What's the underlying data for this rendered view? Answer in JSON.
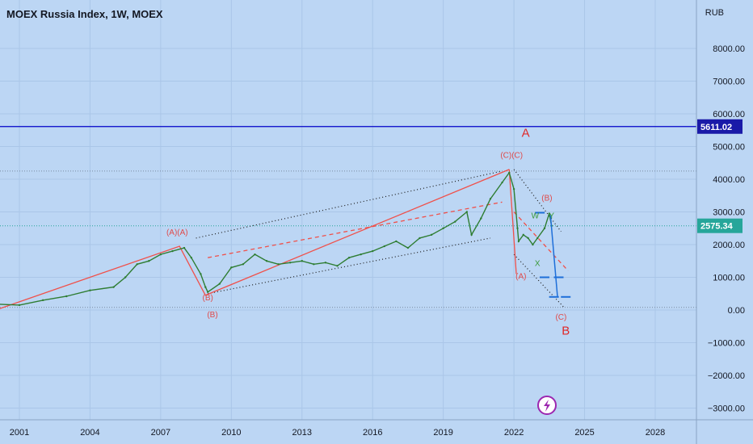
{
  "header": {
    "title": "MOEX Russia Index, 1W, MOEX",
    "currency": "RUB"
  },
  "colors": {
    "background": "#bcd6f4",
    "price": "#2e7d32",
    "red_line": "#f0504a",
    "blue_line": "#0000c8",
    "badge_blue": "#1a1aa8",
    "badge_green": "#26a69a",
    "projection_blue": "#1e6fd9"
  },
  "chart_data": {
    "type": "line",
    "x_axis": {
      "ticks": [
        2001,
        2004,
        2007,
        2010,
        2013,
        2016,
        2019,
        2022,
        2025,
        2028
      ],
      "tick_labels": [
        "2001",
        "2004",
        "2007",
        "2010",
        "2013",
        "2016",
        "2019",
        "2022",
        "2025",
        "2028"
      ],
      "range": [
        2000.0,
        2030.5
      ]
    },
    "y_axis": {
      "ticks": [
        8000,
        7000,
        6000,
        5000,
        4000,
        3000,
        2000,
        1000,
        0,
        -1000,
        -2000,
        -3000
      ],
      "tick_labels": [
        "8000.00",
        "7000.00",
        "6000.00",
        "5000.00",
        "4000.00",
        "3000.00",
        "2000.00",
        "1000.00",
        "0.00",
        "−1000.00",
        "−2000.00",
        "−3000.00"
      ],
      "range": [
        -3300,
        9200
      ]
    },
    "series": [
      {
        "values": [
          [
            2000.0,
            180
          ],
          [
            2001.0,
            150
          ],
          [
            2002.0,
            300
          ],
          [
            2003.0,
            420
          ],
          [
            2004.0,
            600
          ],
          [
            2005.0,
            700
          ],
          [
            2005.5,
            1000
          ],
          [
            2006.0,
            1400
          ],
          [
            2006.5,
            1500
          ],
          [
            2007.0,
            1700
          ],
          [
            2007.5,
            1800
          ],
          [
            2008.0,
            1900
          ],
          [
            2008.3,
            1600
          ],
          [
            2008.7,
            1100
          ],
          [
            2008.9,
            700
          ],
          [
            2009.0,
            550
          ],
          [
            2009.5,
            800
          ],
          [
            2010.0,
            1300
          ],
          [
            2010.5,
            1400
          ],
          [
            2011.0,
            1700
          ],
          [
            2011.5,
            1500
          ],
          [
            2012.0,
            1400
          ],
          [
            2012.5,
            1450
          ],
          [
            2013.0,
            1500
          ],
          [
            2013.5,
            1400
          ],
          [
            2014.0,
            1450
          ],
          [
            2014.5,
            1350
          ],
          [
            2015.0,
            1600
          ],
          [
            2015.5,
            1700
          ],
          [
            2016.0,
            1800
          ],
          [
            2016.5,
            1950
          ],
          [
            2017.0,
            2100
          ],
          [
            2017.5,
            1900
          ],
          [
            2018.0,
            2200
          ],
          [
            2018.5,
            2300
          ],
          [
            2019.0,
            2500
          ],
          [
            2019.5,
            2700
          ],
          [
            2020.0,
            3000
          ],
          [
            2020.2,
            2300
          ],
          [
            2020.6,
            2800
          ],
          [
            2021.0,
            3400
          ],
          [
            2021.5,
            3900
          ],
          [
            2021.8,
            4200
          ],
          [
            2022.0,
            3700
          ],
          [
            2022.15,
            2500
          ],
          [
            2022.2,
            2100
          ],
          [
            2022.4,
            2300
          ],
          [
            2022.6,
            2200
          ],
          [
            2022.8,
            2000
          ],
          [
            2023.0,
            2200
          ],
          [
            2023.3,
            2500
          ],
          [
            2023.5,
            2950
          ],
          [
            2023.6,
            2575
          ]
        ]
      }
    ],
    "horizontal_lines": [
      {
        "value": 5611.02,
        "label": "5611.02"
      },
      {
        "value": 2575.34,
        "label": "2575.34"
      }
    ],
    "reference_lines": [
      4250,
      80
    ],
    "annotations": {
      "wave_labels": [
        "(A)(A)",
        "(B)",
        "(B)",
        "(C)(C)",
        "(B)",
        "W",
        "Y",
        "X",
        "(A)",
        "(C)"
      ],
      "big_labels": [
        "A",
        "B"
      ]
    },
    "grid": true,
    "legend": "none"
  },
  "logo": {
    "icon": "lightning-icon"
  }
}
